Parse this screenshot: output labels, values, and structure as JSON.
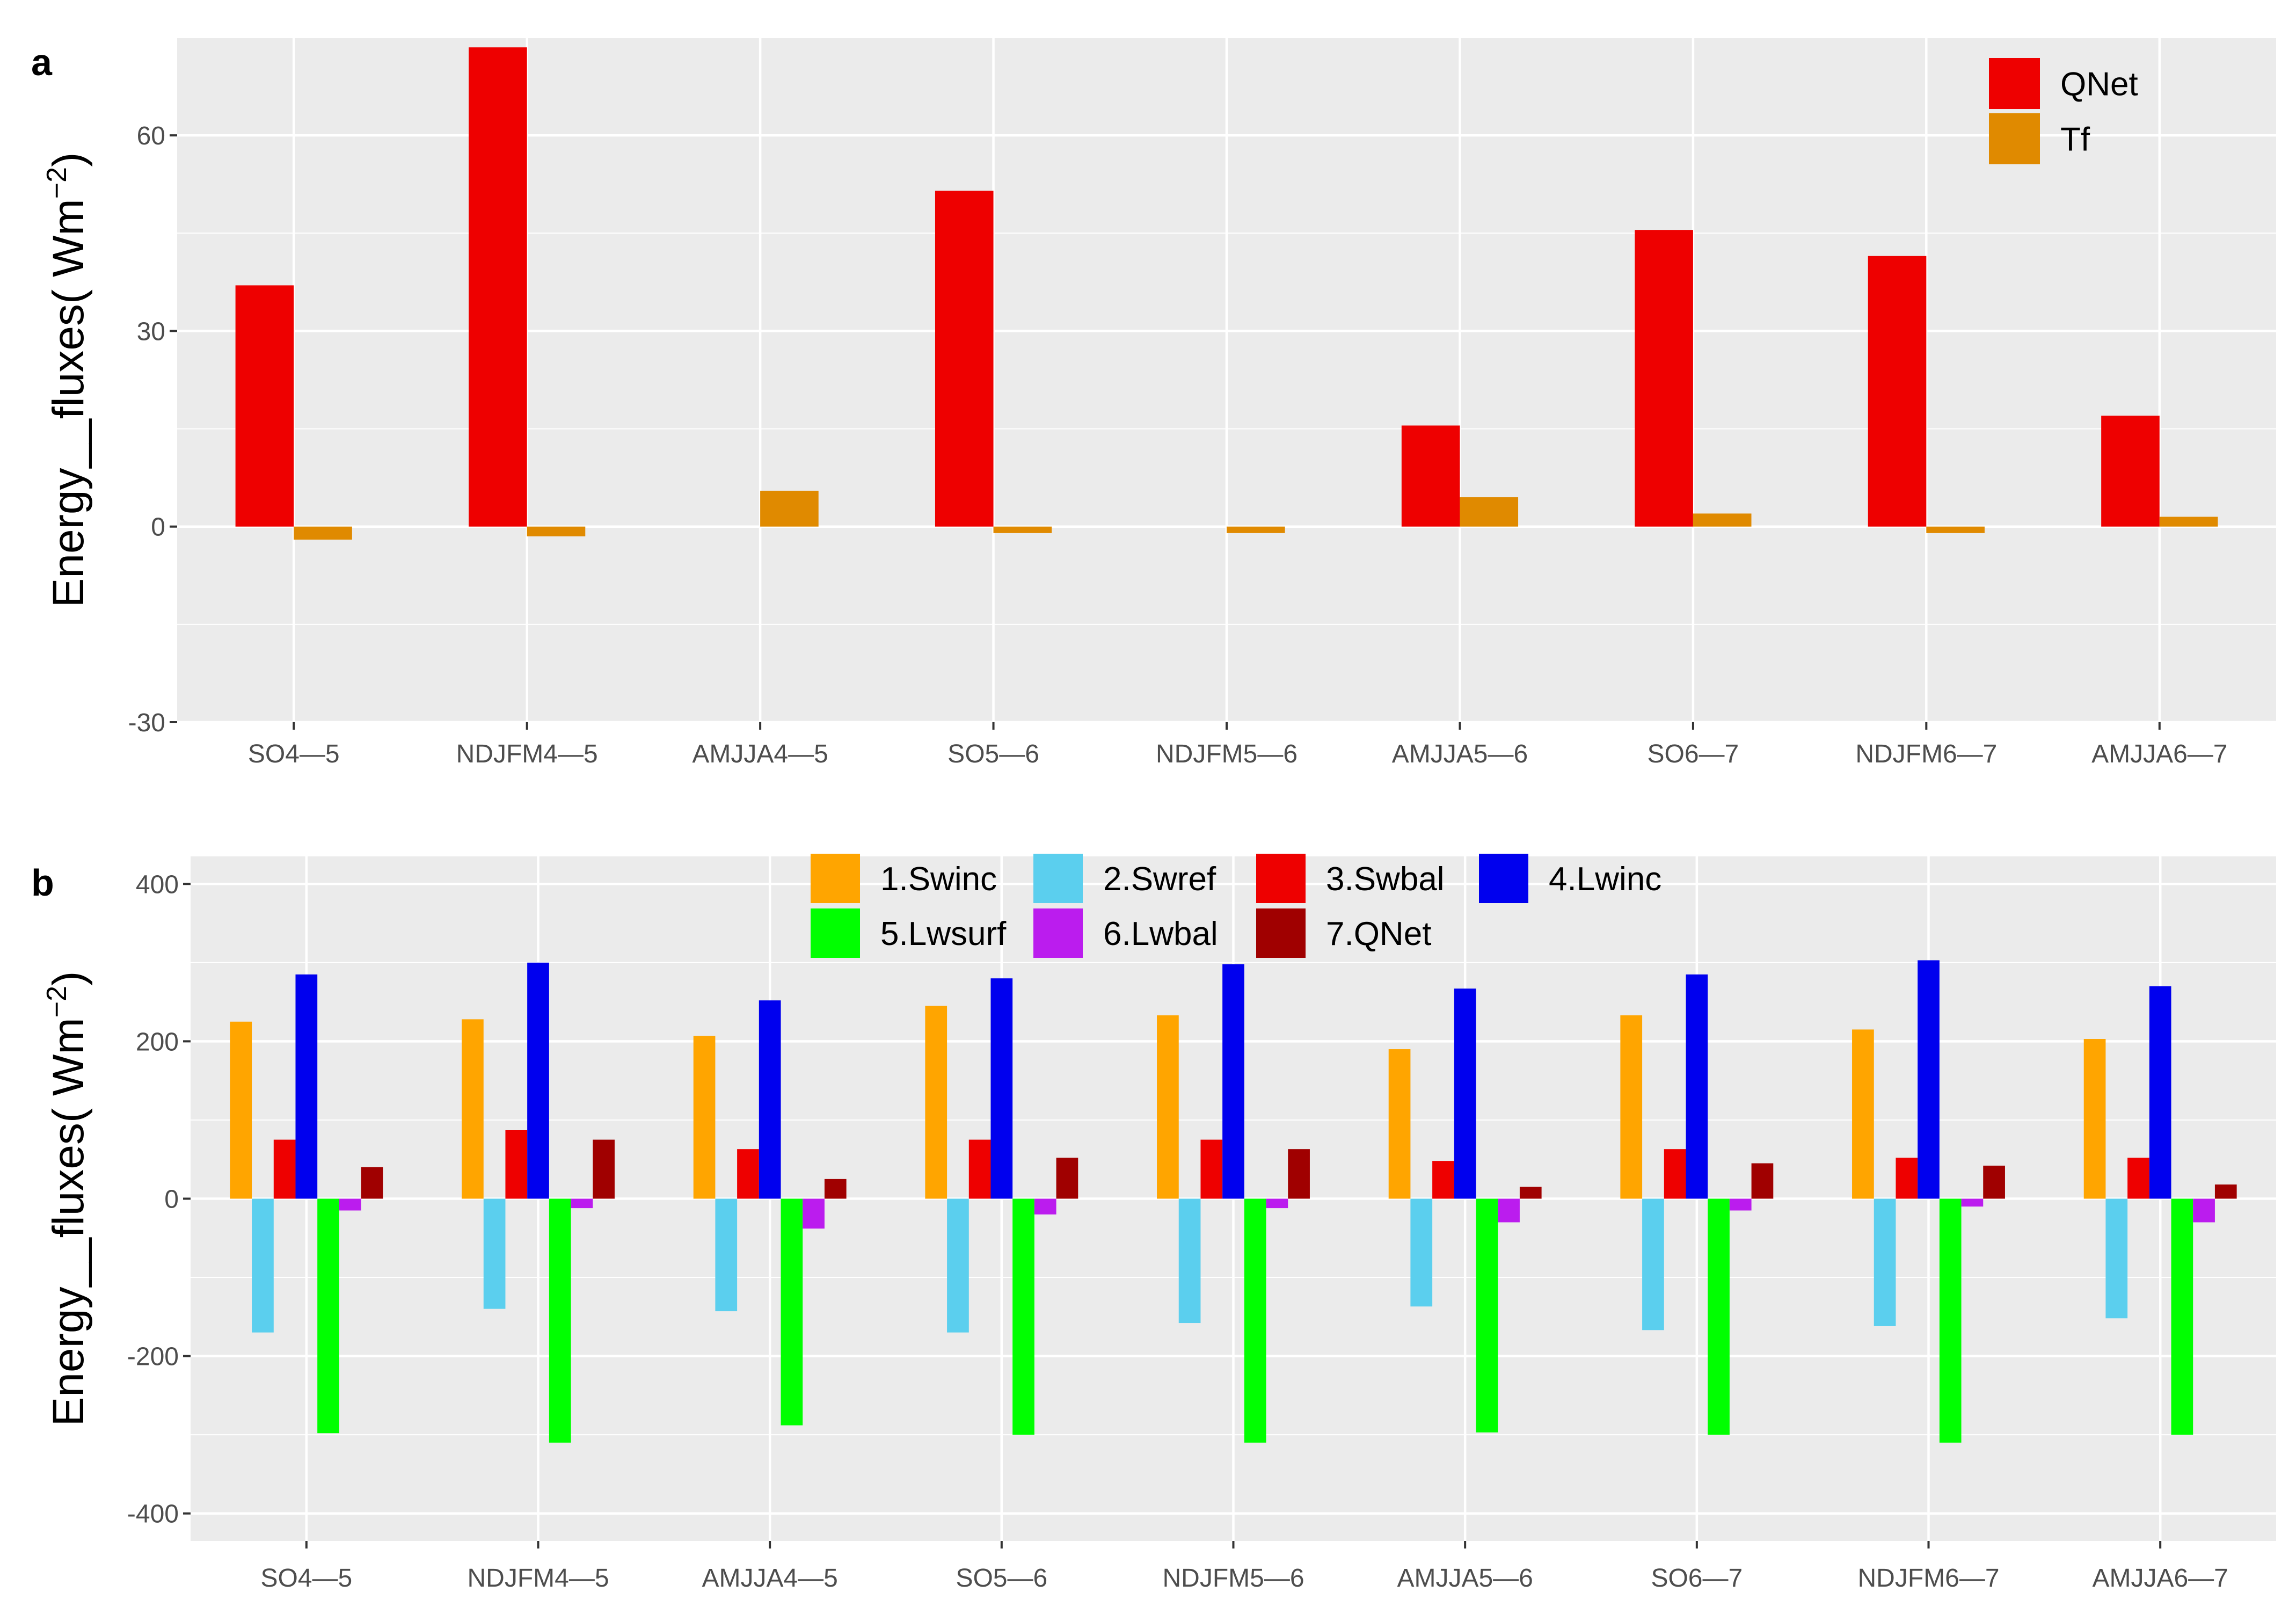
{
  "chart_data": [
    {
      "panel_label": "a",
      "type": "bar",
      "categories": [
        "SO4—5",
        "NDJFM4—5",
        "AMJJA4—5",
        "SO5—6",
        "NDJFM5—6",
        "AMJJA5—6",
        "SO6—7",
        "NDJFM6—7",
        "AMJJA6—7"
      ],
      "ylabel": "Energy__fluxes( Wm",
      "ylabel_sup": "−2",
      "ylabel_close": ")",
      "ylim": [
        -30,
        75
      ],
      "yticks": [
        -30,
        0,
        30,
        60
      ],
      "ytick_labels": [
        "-30",
        "0",
        "30",
        "60"
      ],
      "grid": true,
      "legend_position": "top-right",
      "series": [
        {
          "name": "QNet",
          "color": "#ee0000",
          "values": [
            37,
            73.5,
            0,
            51.5,
            0,
            15.5,
            45.5,
            41.5,
            17
          ]
        },
        {
          "name": "Tf",
          "color": "#e08a00",
          "values": [
            -2,
            -1.5,
            5.5,
            -1,
            -1,
            4.5,
            2,
            -1,
            1.5
          ]
        }
      ]
    },
    {
      "panel_label": "b",
      "type": "bar",
      "categories": [
        "SO4—5",
        "NDJFM4—5",
        "AMJJA4—5",
        "SO5—6",
        "NDJFM5—6",
        "AMJJA5—6",
        "SO6—7",
        "NDJFM6—7",
        "AMJJA6—7"
      ],
      "ylabel": "Energy__fluxes( Wm",
      "ylabel_sup": "−2",
      "ylabel_close": ")",
      "ylim": [
        -435,
        435
      ],
      "yticks": [
        -400,
        -200,
        0,
        200,
        400
      ],
      "ytick_labels": [
        "-400",
        "-200",
        "0",
        "200",
        "400"
      ],
      "grid": true,
      "legend_position": "top",
      "series": [
        {
          "name": "1.Swinc",
          "color": "#ffa500",
          "values": [
            225,
            228,
            207,
            245,
            233,
            190,
            233,
            215,
            203
          ]
        },
        {
          "name": "2.Swref",
          "color": "#5bcfee",
          "values": [
            -170,
            -140,
            -143,
            -170,
            -158,
            -137,
            -167,
            -162,
            -152
          ]
        },
        {
          "name": "3.Swbal",
          "color": "#ee0000",
          "values": [
            75,
            87,
            63,
            75,
            75,
            48,
            63,
            52,
            52
          ]
        },
        {
          "name": "4.Lwinc",
          "color": "#0000ee",
          "values": [
            285,
            300,
            252,
            280,
            298,
            267,
            285,
            303,
            270
          ]
        },
        {
          "name": "5.Lwsurf",
          "color": "#00ff00",
          "values": [
            -298,
            -310,
            -288,
            -300,
            -310,
            -297,
            -300,
            -310,
            -300
          ]
        },
        {
          "name": "6.Lwbal",
          "color": "#bb1cee",
          "values": [
            -15,
            -12,
            -38,
            -20,
            -12,
            -30,
            -15,
            -10,
            -30
          ]
        },
        {
          "name": "7.QNet",
          "color": "#a00000",
          "values": [
            40,
            75,
            25,
            52,
            63,
            15,
            45,
            42,
            18
          ]
        }
      ]
    }
  ]
}
